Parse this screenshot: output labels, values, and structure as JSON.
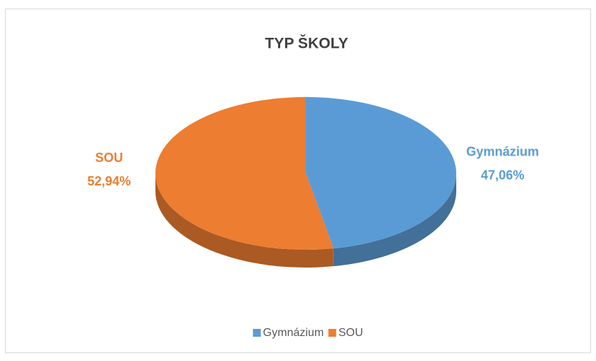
{
  "chart_data": {
    "type": "pie",
    "title": "TYP ŠKOLY",
    "categories": [
      "Gymnázium",
      "SOU"
    ],
    "values": [
      47.06,
      52.94
    ],
    "value_labels": [
      "47,06%",
      "52,94%"
    ],
    "colors": [
      "#5b9bd5",
      "#ed7d31"
    ],
    "legend": "bottom",
    "three_d": true
  }
}
